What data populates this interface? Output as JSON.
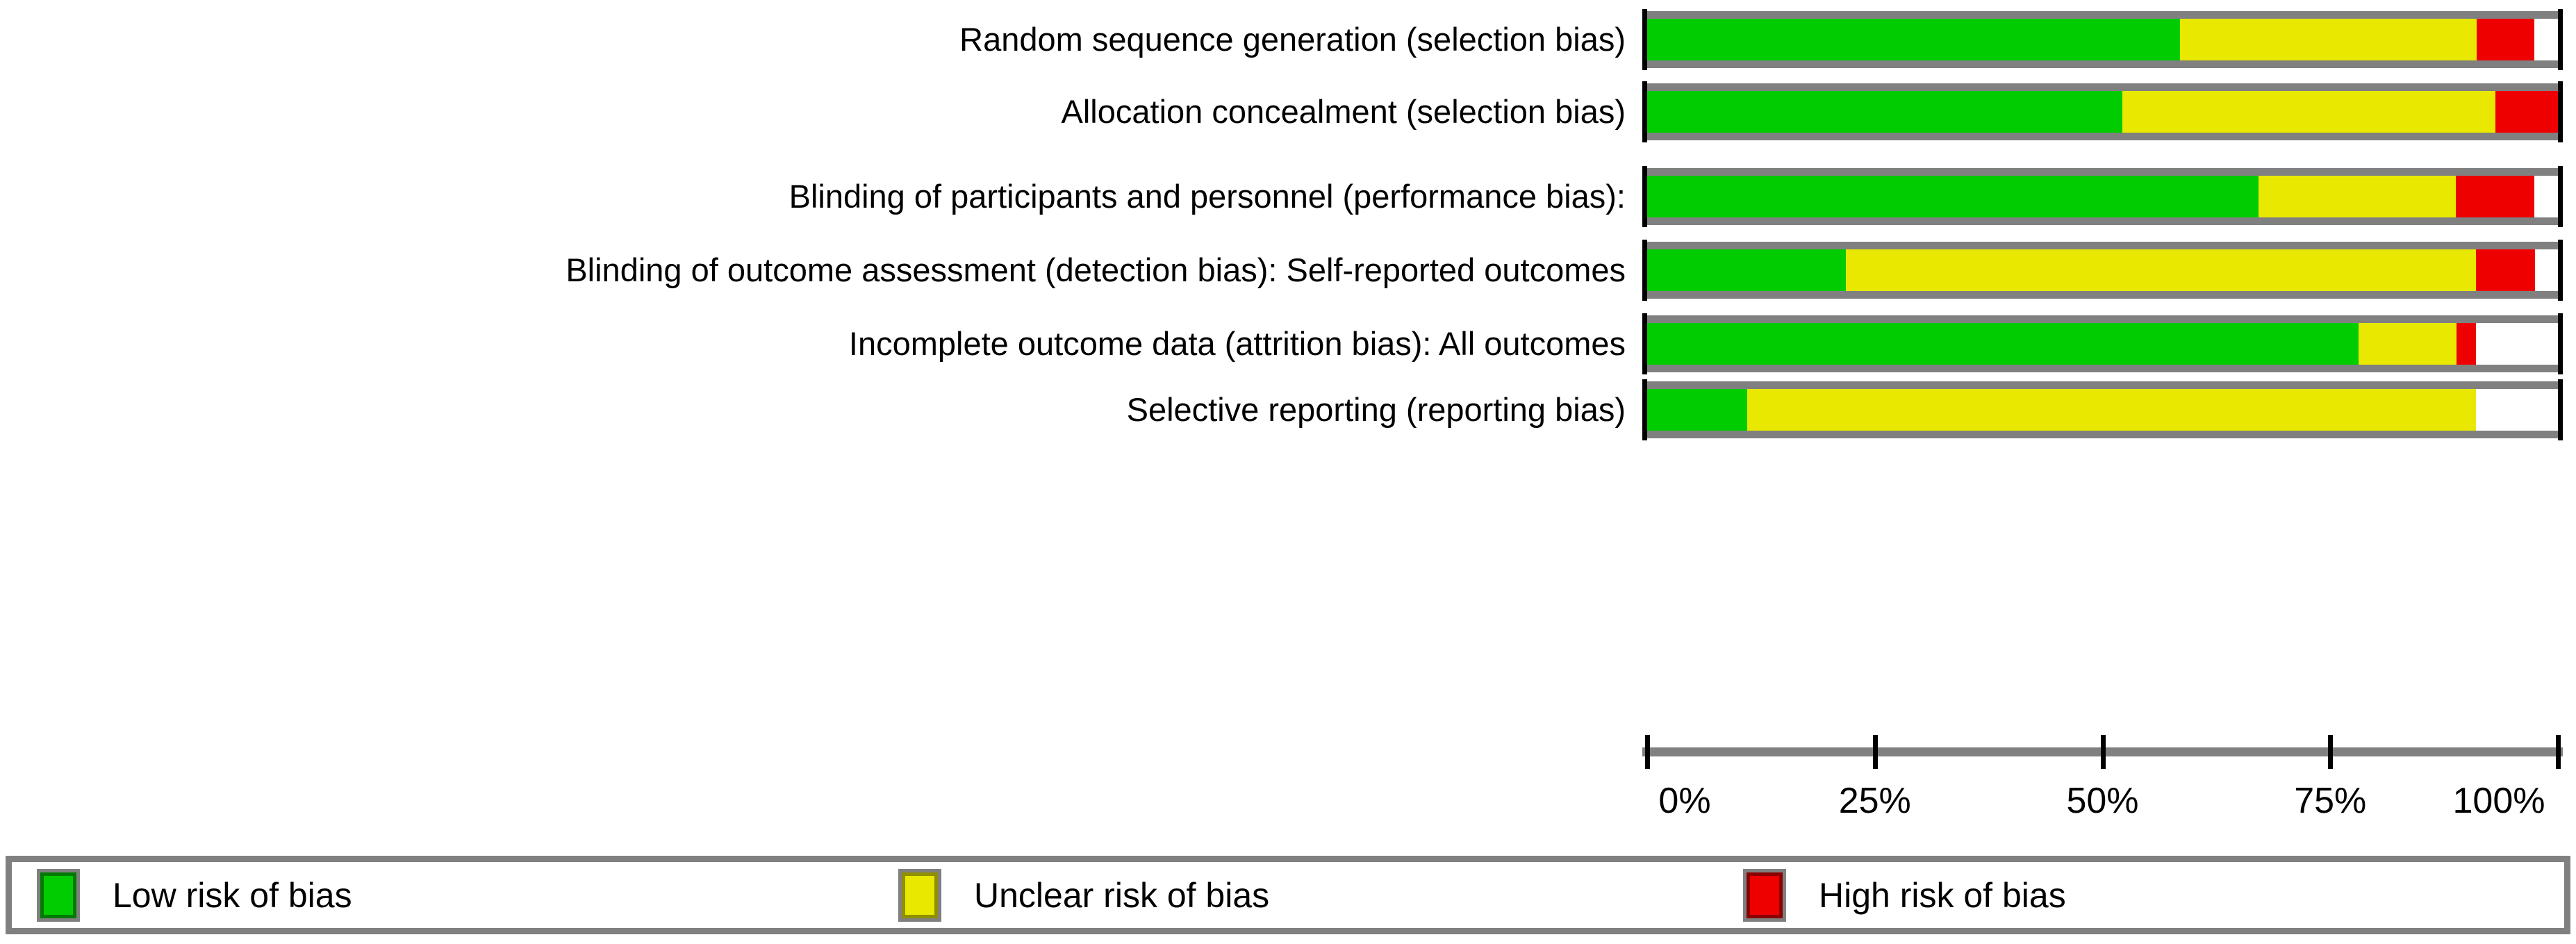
{
  "chart_data": {
    "type": "bar",
    "orientation": "horizontal",
    "stacked": true,
    "unit": "percent of studies",
    "title": "",
    "categories": [
      "Random sequence generation (selection bias)",
      "Allocation concealment (selection bias)",
      "Blinding of participants and personnel (performance bias):",
      "Blinding of outcome assessment (detection bias): Self-reported outcomes",
      "Incomplete outcome data (attrition bias): All outcomes",
      "Selective reporting (reporting bias)"
    ],
    "series": [
      {
        "name": "Low risk of bias",
        "color": "#00cc00",
        "values": [
          58.5,
          52.2,
          67.1,
          21.8,
          78.1,
          11.0
        ]
      },
      {
        "name": "Unclear risk of bias",
        "color": "#e8e800",
        "values": [
          32.6,
          40.9,
          21.7,
          69.2,
          10.8,
          80.0
        ]
      },
      {
        "name": "High risk of bias",
        "color": "#ee0000",
        "values": [
          6.3,
          6.9,
          8.6,
          6.5,
          2.1,
          0.0
        ]
      },
      {
        "name": "blank",
        "color": "#ffffff",
        "values": [
          2.6,
          0.0,
          2.6,
          2.5,
          9.0,
          9.0
        ]
      }
    ],
    "x_axis": {
      "range": [
        0,
        100
      ],
      "ticks": [
        0,
        25,
        50,
        75,
        100
      ],
      "tick_labels": [
        "0%",
        "25%",
        "50%",
        "75%",
        "100%"
      ]
    },
    "grid": false,
    "legend_position": "bottom"
  },
  "legend": {
    "items": [
      {
        "label": "Low risk of bias",
        "color": "#00cc00",
        "border": "#007a00"
      },
      {
        "label": "Unclear risk of bias",
        "color": "#e8e800",
        "border": "#8f8f00"
      },
      {
        "label": "High risk of bias",
        "color": "#ee0000",
        "border": "#8b0000"
      }
    ]
  },
  "frame_colors": {
    "bar_frame_gray": "#808080",
    "bar_end_caps": "#000000",
    "axis_line": "#808080",
    "tick_marks": "#000000"
  }
}
